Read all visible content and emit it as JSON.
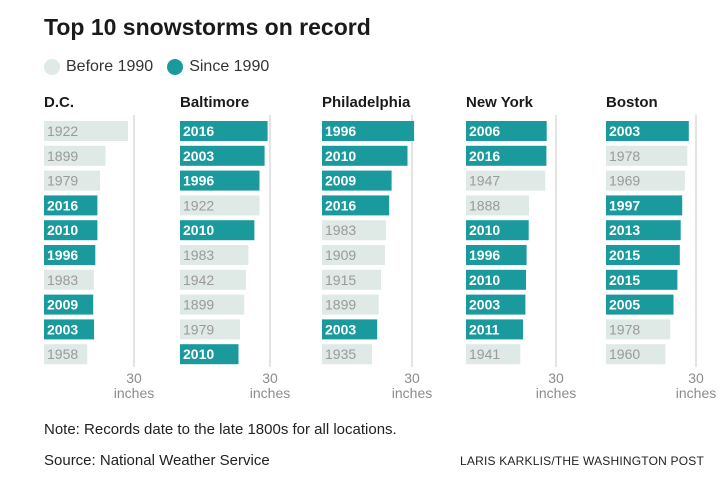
{
  "title": "Top 10 snowstorms on record",
  "legend": [
    {
      "label": "Before 1990",
      "color": "#dfe9e6"
    },
    {
      "label": "Since 1990",
      "color": "#1a9a9d"
    }
  ],
  "note": "Note: Records date to the late 1800s for all locations.",
  "source": "Source: National Weather Service",
  "credit": "LARIS KARKLIS/THE WASHINGTON POST",
  "colors": {
    "before": "#dfe9e6",
    "since": "#1a9a9d",
    "text_before": "#9a9a9a",
    "text_since": "#ffffff",
    "axis": "#c8c8c8",
    "tick_text": "#8c8c8c"
  },
  "chart_data": {
    "type": "bar",
    "orientation": "horizontal",
    "axis_max": 30,
    "tick_value": "30",
    "tick_unit": "inches",
    "panels": [
      {
        "city": "D.C.",
        "years": [
          "1922",
          "1899",
          "1979",
          "2016",
          "2010",
          "1996",
          "1983",
          "2009",
          "2003",
          "1958"
        ],
        "values": [
          28,
          20.5,
          18.7,
          17.8,
          17.8,
          17.1,
          16.6,
          16.4,
          16.7,
          14.4
        ],
        "since_1990": [
          false,
          false,
          false,
          true,
          true,
          true,
          false,
          true,
          true,
          false
        ]
      },
      {
        "city": "Baltimore",
        "years": [
          "2016",
          "2003",
          "1996",
          "1922",
          "2010",
          "1983",
          "1942",
          "1899",
          "1979",
          "2010"
        ],
        "values": [
          29.2,
          28.2,
          26.5,
          26.5,
          24.8,
          22.8,
          22,
          21.4,
          20,
          19.5
        ],
        "since_1990": [
          true,
          true,
          true,
          false,
          true,
          false,
          false,
          false,
          false,
          true
        ]
      },
      {
        "city": "Philadelphia",
        "years": [
          "1996",
          "2010",
          "2009",
          "2016",
          "1983",
          "1909",
          "1915",
          "1899",
          "2003",
          "1935"
        ],
        "values": [
          30.7,
          28.5,
          23.2,
          22.4,
          21.3,
          21,
          19.7,
          18.9,
          18.4,
          16.7
        ],
        "since_1990": [
          true,
          true,
          true,
          true,
          false,
          false,
          false,
          false,
          true,
          false
        ]
      },
      {
        "city": "New York",
        "years": [
          "2006",
          "2016",
          "1947",
          "1888",
          "2010",
          "1996",
          "2010",
          "2003",
          "2011",
          "1941"
        ],
        "values": [
          26.9,
          26.8,
          26.4,
          21,
          20.9,
          20.2,
          20,
          19.8,
          19,
          18.1
        ],
        "since_1990": [
          true,
          true,
          false,
          false,
          true,
          true,
          true,
          true,
          true,
          false
        ]
      },
      {
        "city": "Boston",
        "years": [
          "2003",
          "1978",
          "1969",
          "1997",
          "2013",
          "2015",
          "2015",
          "2005",
          "1978",
          "1960"
        ],
        "values": [
          27.6,
          27.1,
          26.3,
          25.4,
          24.9,
          24.6,
          23.8,
          22.5,
          21.4,
          19.8
        ],
        "since_1990": [
          true,
          false,
          false,
          true,
          true,
          true,
          true,
          true,
          false,
          false
        ]
      }
    ]
  }
}
